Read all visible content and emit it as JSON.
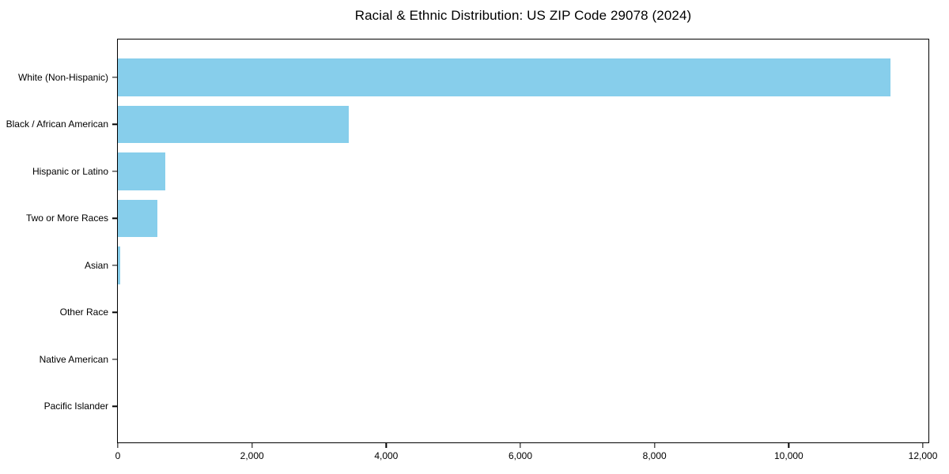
{
  "title": "Racial & Ethnic Distribution: US ZIP Code 29078 (2024)",
  "chart_data": {
    "type": "bar",
    "orientation": "horizontal",
    "title": "Racial & Ethnic Distribution: US ZIP Code 29078 (2024)",
    "categories": [
      "White (Non-Hispanic)",
      "Black / African American",
      "Hispanic or Latino",
      "Two or More Races",
      "Asian",
      "Other Race",
      "Native American",
      "Pacific Islander"
    ],
    "values": [
      11512,
      3443,
      710,
      585,
      40,
      0,
      0,
      0
    ],
    "xlabel": "",
    "ylabel": "",
    "xlim": [
      0,
      12082
    ],
    "xticks": [
      0,
      2000,
      4000,
      6000,
      8000,
      10000,
      12000
    ],
    "xtick_labels": [
      "0",
      "2,000",
      "4,000",
      "6,000",
      "8,000",
      "10,000",
      "12,000"
    ],
    "bar_color": "#87CEEB",
    "spine_color": "#000000",
    "text_color": "#000000",
    "grid": false,
    "legend": null
  }
}
